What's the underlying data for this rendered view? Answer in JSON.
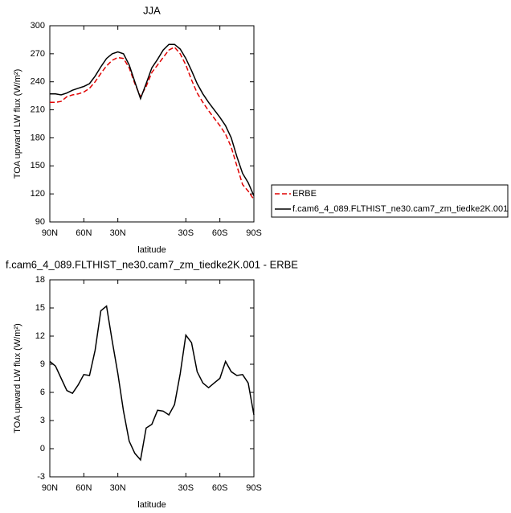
{
  "chart_data": [
    {
      "type": "line",
      "title": "JJA",
      "xlabel": "latitude",
      "ylabel": "TOA upward LW flux (W/m²)",
      "x": [
        90,
        85,
        80,
        75,
        70,
        65,
        60,
        55,
        50,
        45,
        40,
        35,
        30,
        25,
        20,
        15,
        10,
        5,
        0,
        -5,
        -10,
        -15,
        -20,
        -25,
        -30,
        -35,
        -40,
        -45,
        -50,
        -55,
        -60,
        -65,
        -70,
        -75,
        -80,
        -85,
        -90
      ],
      "series": [
        {
          "name": "ERBE",
          "color": "#e00000",
          "dashed": true,
          "values": [
            218,
            218,
            219,
            224,
            226,
            227,
            229,
            233,
            240,
            249,
            257,
            263,
            266,
            265,
            255,
            238,
            224,
            235,
            250,
            258,
            266,
            274,
            277,
            270,
            258,
            242,
            228,
            218,
            209,
            201,
            193,
            184,
            170,
            150,
            130,
            123,
            114
          ]
        },
        {
          "name": "f.cam6_4_089.FLTHIST_ne30.cam7_zm_tiedke2K.001",
          "color": "#000000",
          "dashed": false,
          "values": [
            227,
            227,
            226,
            228,
            231,
            233,
            235,
            238,
            246,
            256,
            265,
            270,
            272,
            270,
            258,
            240,
            222,
            238,
            255,
            264,
            274,
            280,
            280,
            275,
            265,
            252,
            238,
            227,
            218,
            210,
            202,
            193,
            180,
            160,
            142,
            132,
            118
          ]
        }
      ],
      "xlim": [
        90,
        -90
      ],
      "xticks": [
        {
          "value": 90,
          "label": "90N"
        },
        {
          "value": 60,
          "label": "60N"
        },
        {
          "value": 30,
          "label": "30N"
        },
        {
          "value": -30,
          "label": "30S"
        },
        {
          "value": -60,
          "label": "60S"
        },
        {
          "value": -90,
          "label": "90S"
        }
      ],
      "ylim": [
        90,
        300
      ],
      "yticks": [
        90,
        120,
        150,
        180,
        210,
        240,
        270,
        300
      ]
    },
    {
      "type": "line",
      "title": "f.cam6_4_089.FLTHIST_ne30.cam7_zm_tiedke2K.001 - ERBE",
      "xlabel": "latitude",
      "ylabel": "TOA upward LW flux (W/m²)",
      "x": [
        90,
        85,
        80,
        75,
        70,
        65,
        60,
        55,
        50,
        45,
        40,
        35,
        30,
        25,
        20,
        15,
        10,
        5,
        0,
        -5,
        -10,
        -15,
        -20,
        -25,
        -30,
        -35,
        -40,
        -45,
        -50,
        -55,
        -60,
        -65,
        -70,
        -75,
        -80,
        -85,
        -90
      ],
      "color": "#000000",
      "values": [
        9.3,
        8.8,
        7.5,
        6.2,
        5.9,
        6.8,
        7.9,
        7.8,
        10.5,
        14.7,
        15.2,
        11.5,
        8.0,
        4.0,
        0.8,
        -0.5,
        -1.2,
        2.2,
        2.6,
        4.1,
        4.0,
        3.6,
        4.7,
        8.0,
        12.1,
        11.3,
        8.2,
        7.0,
        6.5,
        7.0,
        7.5,
        9.3,
        8.2,
        7.8,
        7.9,
        7.0,
        3.6
      ],
      "xlim": [
        90,
        -90
      ],
      "xticks": [
        {
          "value": 90,
          "label": "90N"
        },
        {
          "value": 60,
          "label": "60N"
        },
        {
          "value": 30,
          "label": "30N"
        },
        {
          "value": -30,
          "label": "30S"
        },
        {
          "value": -60,
          "label": "60S"
        },
        {
          "value": -90,
          "label": "90S"
        }
      ],
      "ylim": [
        -3,
        18
      ],
      "yticks": [
        -3,
        0,
        3,
        6,
        9,
        12,
        15,
        18
      ]
    }
  ]
}
